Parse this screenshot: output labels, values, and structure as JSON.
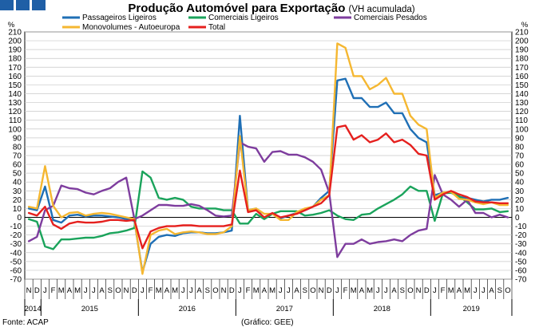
{
  "title": "Produção Automóvel para Exportação",
  "subtitle": "(VH acumulada)",
  "source": "Fonte: ACAP",
  "credit": "(Gráfico: GEE)",
  "chart_data": {
    "type": "line",
    "ylabel_left": "%",
    "ylabel_right": "%",
    "ylim": [
      -70,
      210
    ],
    "ytick_step": 10,
    "grid": true,
    "legend_position": "top",
    "x_month_labels": [
      "N",
      "D",
      "J",
      "F",
      "M",
      "A",
      "M",
      "J",
      "J",
      "A",
      "S",
      "O",
      "N",
      "D",
      "J",
      "F",
      "M",
      "A",
      "M",
      "J",
      "J",
      "A",
      "S",
      "O",
      "N",
      "D",
      "J",
      "F",
      "M",
      "A",
      "M",
      "J",
      "J",
      "A",
      "S",
      "O",
      "N",
      "D",
      "J",
      "F",
      "M",
      "A",
      "M",
      "J",
      "J",
      "A",
      "S",
      "O",
      "N",
      "D",
      "J",
      "F",
      "M",
      "A",
      "M",
      "J",
      "J",
      "A",
      "S",
      "O"
    ],
    "x_year_labels": [
      {
        "label": "2014",
        "start": 0,
        "end": 1
      },
      {
        "label": "2015",
        "start": 2,
        "end": 13
      },
      {
        "label": "2016",
        "start": 14,
        "end": 25
      },
      {
        "label": "2017",
        "start": 26,
        "end": 37
      },
      {
        "label": "2018",
        "start": 38,
        "end": 49
      },
      {
        "label": "2019",
        "start": 50,
        "end": 59
      }
    ],
    "series": [
      {
        "name": "Passageiros Ligeiros",
        "color": "#1f6fb5",
        "values": [
          10,
          8,
          35,
          -3,
          -6,
          2,
          3,
          1,
          2,
          2,
          1,
          0,
          -2,
          -4,
          -62,
          -30,
          -22,
          -20,
          -21,
          -18,
          -17,
          -17,
          -18,
          -18,
          -17,
          -15,
          115,
          8,
          10,
          -1,
          4,
          -1,
          2,
          5,
          8,
          12,
          22,
          30,
          155,
          157,
          135,
          135,
          125,
          125,
          130,
          118,
          118,
          100,
          90,
          85,
          25,
          28,
          28,
          23,
          22,
          20,
          18,
          20,
          20,
          22
        ]
      },
      {
        "name": "Comerciais Ligeiros",
        "color": "#1aa35b",
        "values": [
          -2,
          -5,
          -33,
          -36,
          -25,
          -25,
          -24,
          -23,
          -23,
          -21,
          -18,
          -17,
          -15,
          -12,
          52,
          45,
          22,
          20,
          22,
          20,
          12,
          10,
          10,
          10,
          8,
          8,
          -7,
          -7,
          4,
          -2,
          4,
          7,
          7,
          7,
          2,
          3,
          5,
          8,
          2,
          -2,
          -3,
          3,
          4,
          10,
          15,
          20,
          26,
          35,
          30,
          30,
          -4,
          27,
          28,
          24,
          17,
          9,
          9,
          10,
          6,
          7
        ]
      },
      {
        "name": "Comerciais Pesados",
        "color": "#7e3d9e",
        "values": [
          -27,
          -22,
          8,
          13,
          36,
          33,
          32,
          28,
          26,
          30,
          33,
          40,
          45,
          -2,
          2,
          8,
          14,
          14,
          13,
          13,
          15,
          13,
          8,
          2,
          1,
          2,
          85,
          80,
          78,
          63,
          74,
          75,
          71,
          71,
          68,
          63,
          54,
          28,
          -45,
          -30,
          -30,
          -25,
          -30,
          -28,
          -27,
          -25,
          -27,
          -20,
          -15,
          -13,
          48,
          26,
          20,
          12,
          20,
          5,
          5,
          0,
          3,
          0
        ]
      },
      {
        "name": "Monovolumes - Autoeuropa",
        "color": "#f5b731",
        "values": [
          12,
          10,
          58,
          13,
          0,
          5,
          6,
          2,
          4,
          5,
          4,
          2,
          0,
          -2,
          -64,
          -20,
          -15,
          -13,
          -19,
          -17,
          -16,
          -17,
          -19,
          -19,
          -17,
          -10,
          92,
          8,
          10,
          4,
          4,
          -3,
          -3,
          6,
          10,
          12,
          20,
          25,
          197,
          192,
          160,
          160,
          145,
          150,
          158,
          140,
          140,
          115,
          105,
          100,
          22,
          28,
          29,
          21,
          20,
          17,
          15,
          17,
          14,
          14
        ]
      },
      {
        "name": "Total",
        "color": "#e5201e",
        "values": [
          5,
          2,
          12,
          -8,
          -13,
          -7,
          -5,
          -6,
          -6,
          -5,
          -3,
          -3,
          -4,
          -3,
          -35,
          -16,
          -12,
          -10,
          -10,
          -9,
          -9,
          -10,
          -10,
          -10,
          -10,
          -8,
          53,
          6,
          8,
          0,
          5,
          0,
          2,
          4,
          8,
          12,
          16,
          25,
          102,
          104,
          88,
          93,
          85,
          88,
          95,
          85,
          88,
          82,
          72,
          70,
          20,
          26,
          30,
          26,
          23,
          18,
          17,
          17,
          16,
          16
        ]
      }
    ]
  }
}
